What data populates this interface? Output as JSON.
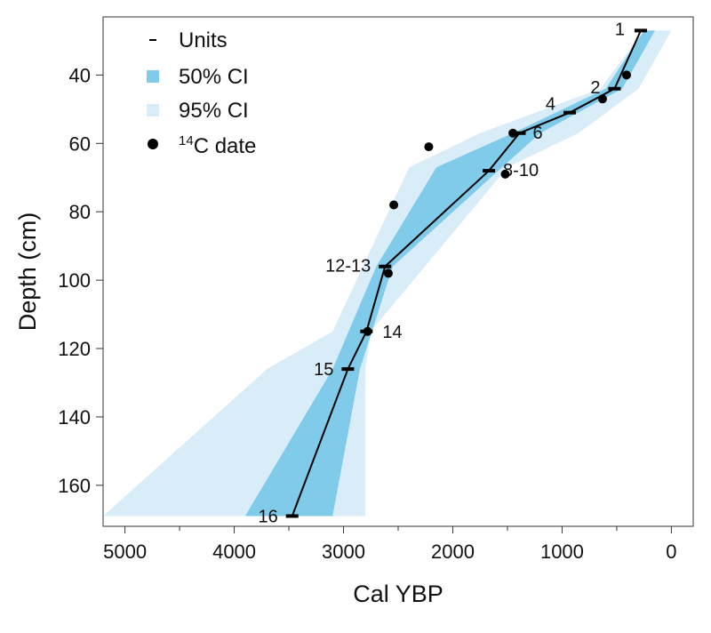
{
  "chart_data": {
    "type": "line",
    "xlabel": "Cal YBP",
    "ylabel": "Depth (cm)",
    "xlim": [
      5200,
      -200
    ],
    "ylim": [
      172,
      23
    ],
    "x_ticks": [
      5000,
      4000,
      3000,
      2000,
      1000,
      0
    ],
    "x_minor_ticks": [
      4500,
      3500,
      2500,
      1500,
      500
    ],
    "y_ticks": [
      40,
      60,
      80,
      100,
      120,
      140,
      160
    ],
    "colors": {
      "ci50": "#7fcbe9",
      "ci95": "#d8edf8",
      "line": "#000000"
    },
    "legend": {
      "position": "top-left",
      "entries": [
        {
          "type": "dash",
          "label": "Units"
        },
        {
          "type": "ci50",
          "label": "50% CI"
        },
        {
          "type": "ci95",
          "label": "95% CI"
        },
        {
          "type": "dot",
          "label_sup": "14",
          "label_rest": "C date"
        }
      ]
    },
    "ci95": {
      "depth": [
        27,
        44,
        57,
        67,
        115,
        126,
        169
      ],
      "young": [
        0,
        300,
        850,
        1500,
        2750,
        2800,
        2800
      ],
      "old": [
        250,
        650,
        1750,
        2400,
        3100,
        3700,
        5200
      ]
    },
    "ci50": {
      "depth": [
        27,
        44,
        57,
        67,
        96,
        126,
        169
      ],
      "young": [
        150,
        450,
        1200,
        1550,
        2550,
        2850,
        3100
      ],
      "old": [
        250,
        600,
        1450,
        2150,
        2700,
        3100,
        3900
      ]
    },
    "units": [
      {
        "label": "1",
        "age": 280,
        "depth": 27
      },
      {
        "label": "2",
        "age": 520,
        "depth": 44
      },
      {
        "label": "4",
        "age": 930,
        "depth": 51
      },
      {
        "label": "6",
        "age": 1390,
        "depth": 57
      },
      {
        "label": "8-10",
        "age": 1670,
        "depth": 68
      },
      {
        "label": "12-13",
        "age": 2620,
        "depth": 96
      },
      {
        "label": "14",
        "age": 2790,
        "depth": 115
      },
      {
        "label": "15",
        "age": 2960,
        "depth": 126
      },
      {
        "label": "16",
        "age": 3470,
        "depth": 169
      }
    ],
    "c14_dates": [
      {
        "age": 410,
        "depth": 40
      },
      {
        "age": 630,
        "depth": 47
      },
      {
        "age": 1450,
        "depth": 57
      },
      {
        "age": 1520,
        "depth": 69
      },
      {
        "age": 2220,
        "depth": 61
      },
      {
        "age": 2540,
        "depth": 78
      },
      {
        "age": 2590,
        "depth": 98
      },
      {
        "age": 2780,
        "depth": 115
      }
    ]
  }
}
